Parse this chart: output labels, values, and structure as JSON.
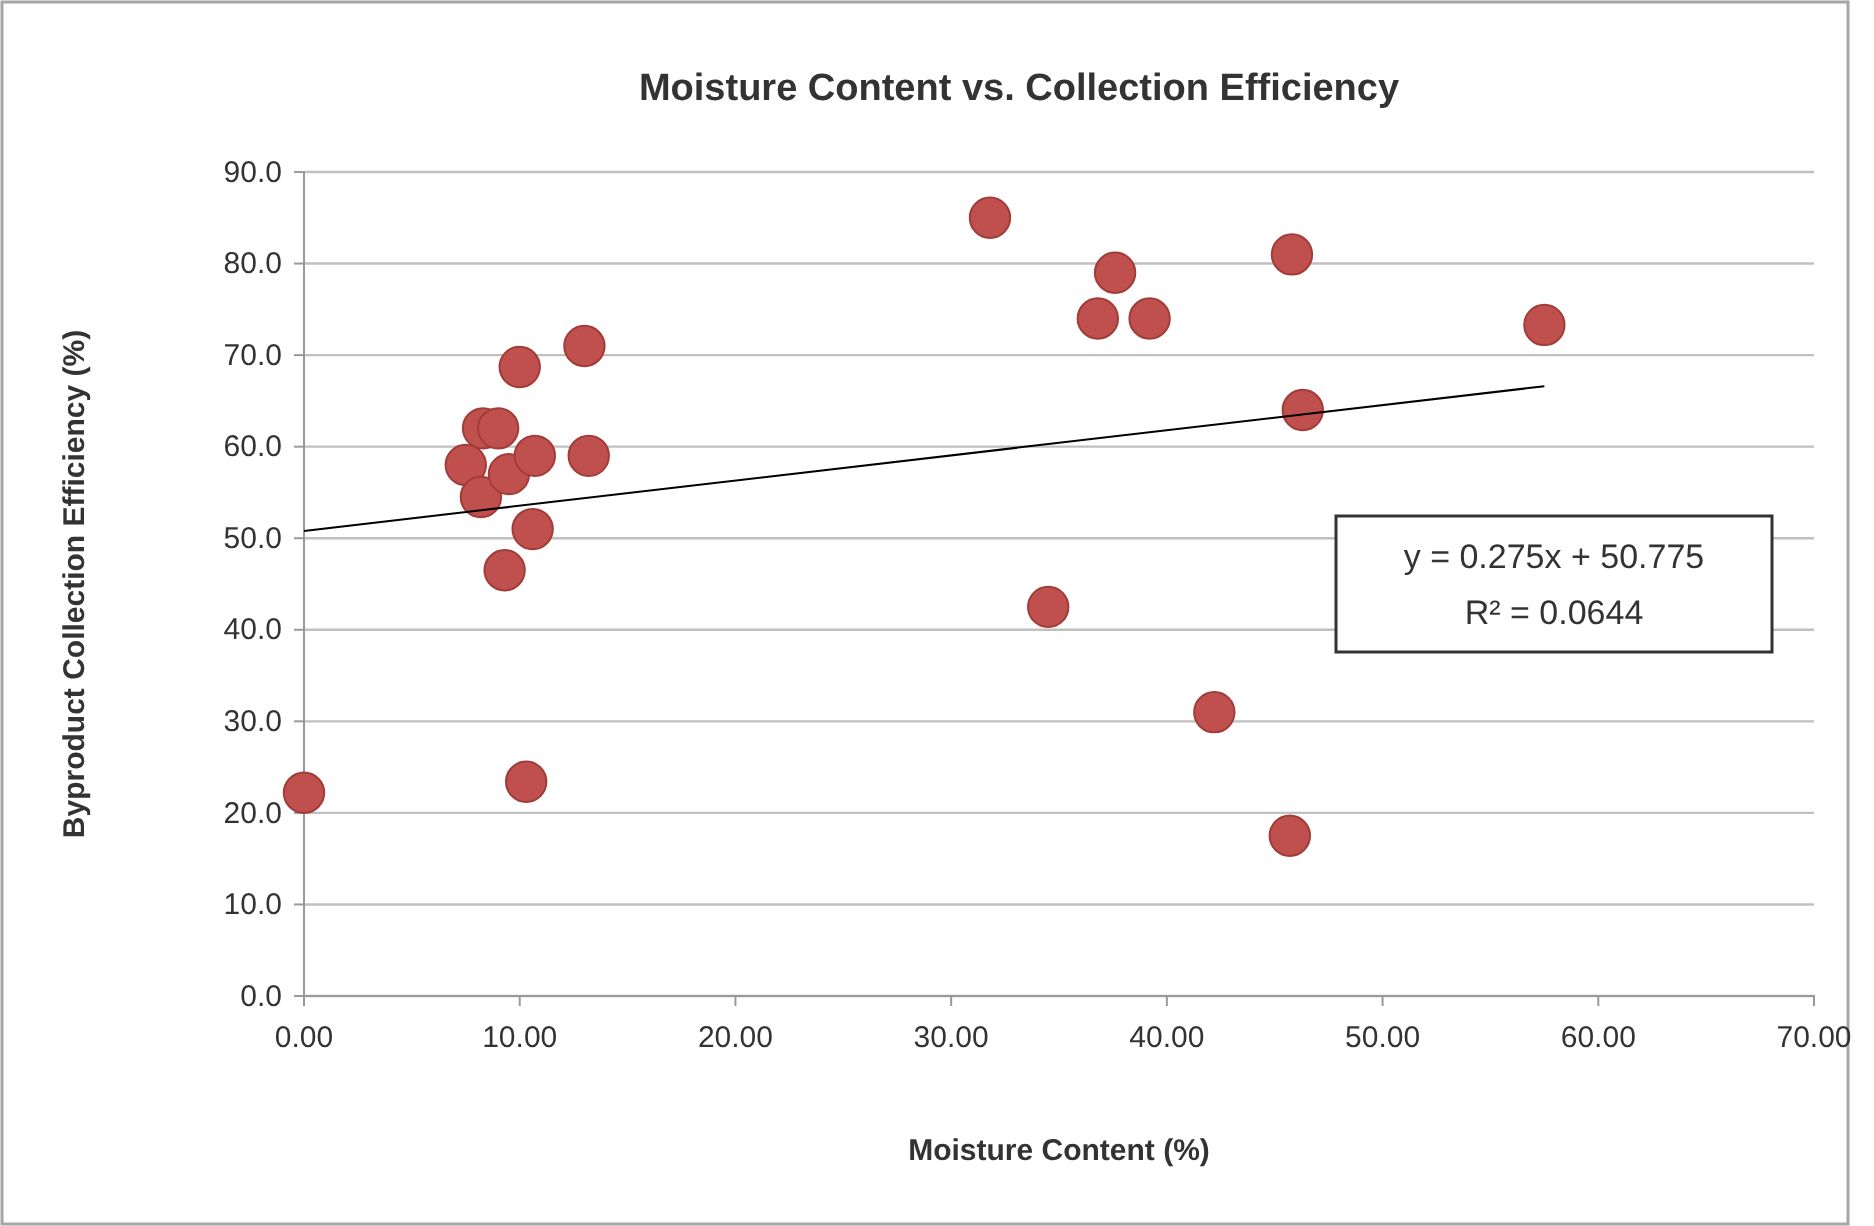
{
  "chart_data": {
    "type": "scatter",
    "title": "Moisture Content vs. Collection Efficiency",
    "xlabel": "Moisture Content (%)",
    "ylabel": "Byproduct Collection Efficiency (%)",
    "xlim": [
      0,
      70
    ],
    "xticks": [
      {
        "value": 0,
        "label": "0.00"
      },
      {
        "value": 10,
        "label": "10.00"
      },
      {
        "value": 20,
        "label": "20.00"
      },
      {
        "value": 30,
        "label": "30.00"
      },
      {
        "value": 40,
        "label": "40.00"
      },
      {
        "value": 50,
        "label": "50.00"
      },
      {
        "value": 60,
        "label": "60.00"
      },
      {
        "value": 70,
        "label": "70.00"
      }
    ],
    "ylim": [
      0,
      90
    ],
    "yticks": [
      {
        "value": 0,
        "label": "0.0"
      },
      {
        "value": 10,
        "label": "10.0"
      },
      {
        "value": 20,
        "label": "20.0"
      },
      {
        "value": 30,
        "label": "30.0"
      },
      {
        "value": 40,
        "label": "40.0"
      },
      {
        "value": 50,
        "label": "50.0"
      },
      {
        "value": 60,
        "label": "60.0"
      },
      {
        "value": 70,
        "label": "70.0"
      },
      {
        "value": 80,
        "label": "80.0"
      },
      {
        "value": 90,
        "label": "90.0"
      }
    ],
    "grid": "y",
    "series": [
      {
        "marker": "circle",
        "color": "#c0504d",
        "x": [
          0.0,
          7.5,
          8.2,
          8.3,
          9.0,
          9.5,
          9.3,
          10.0,
          10.7,
          10.6,
          10.3,
          13.0,
          13.2,
          31.8,
          34.5,
          36.8,
          37.6,
          39.2,
          42.2,
          45.8,
          45.7,
          46.3,
          57.5
        ],
        "values": [
          22.2,
          58,
          54.5,
          62,
          62,
          57,
          46.5,
          68.7,
          59,
          51,
          23.4,
          71,
          59,
          85,
          42.5,
          74,
          79,
          74,
          31,
          81,
          17.5,
          64,
          73.3
        ]
      },
      {
        "type": "line",
        "color": "#000000",
        "x": [
          0,
          57.5
        ],
        "values": [
          50.8,
          66.6
        ]
      }
    ],
    "annotations": [
      "y = 0.275x + 50.775",
      "R² = 0.0644"
    ]
  }
}
